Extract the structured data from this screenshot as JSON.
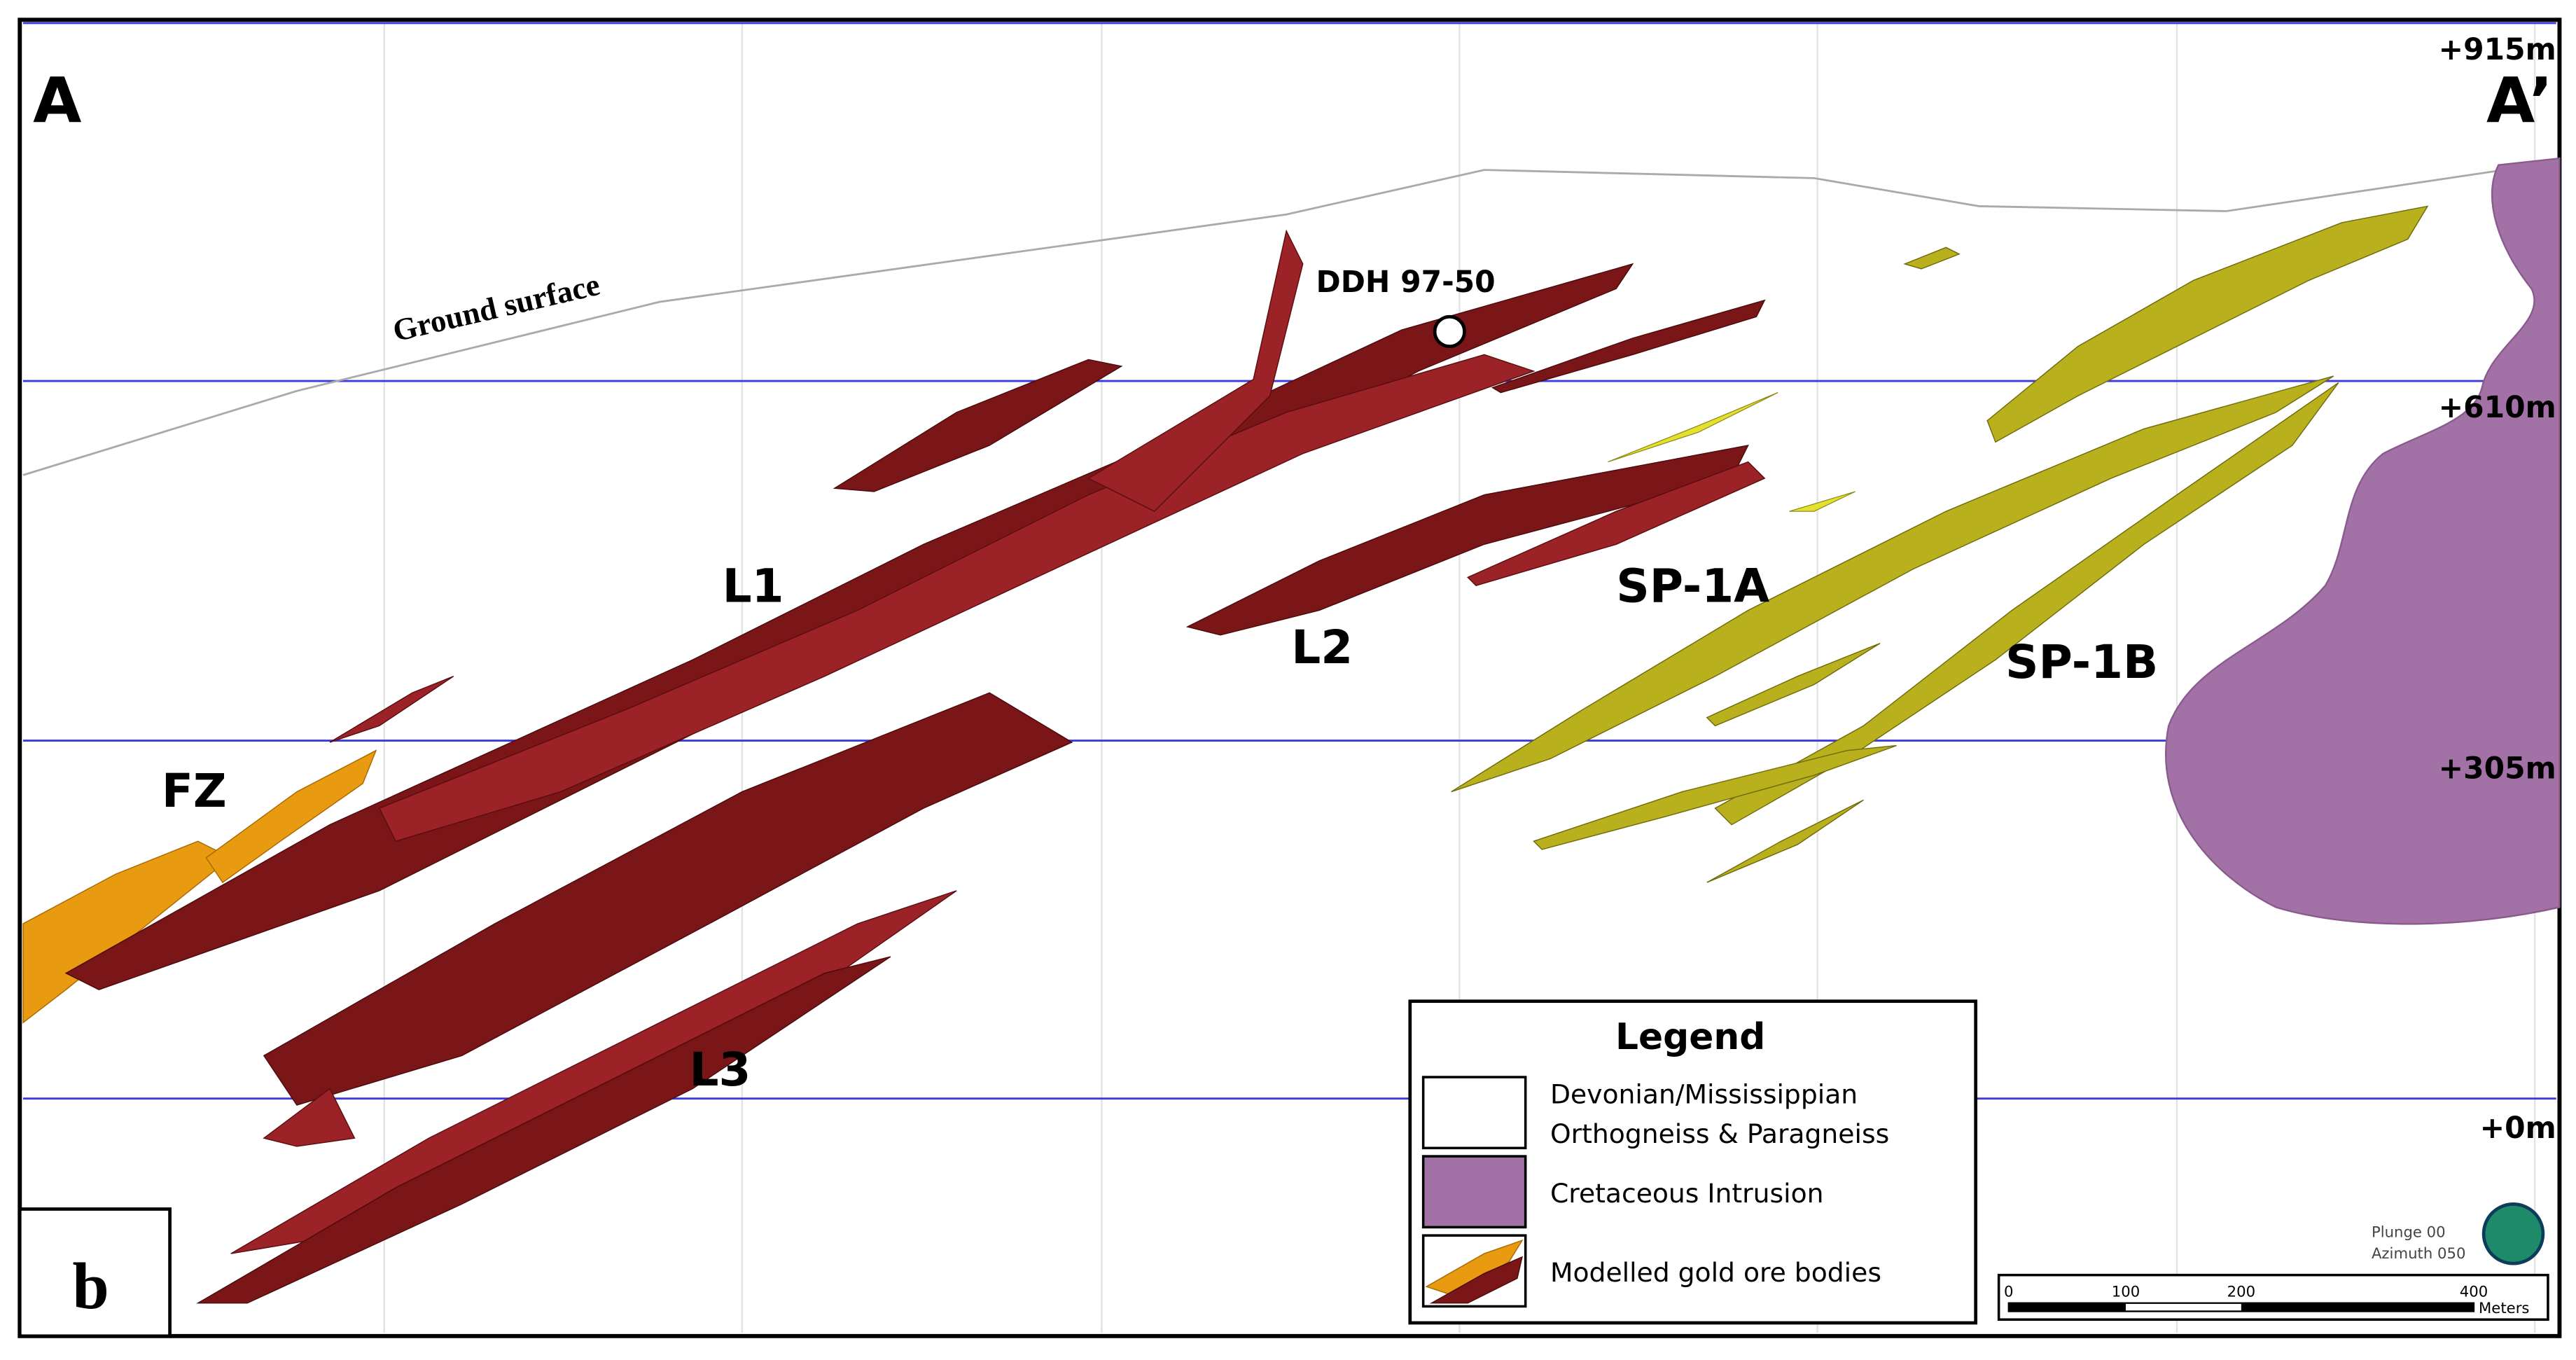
{
  "section": {
    "start_label": "A",
    "end_label": "A’",
    "elevations": [
      "+915m",
      "+610m",
      "+305m",
      "+0m"
    ],
    "ground_surface": "Ground surface",
    "drillhole": "DDH 97-50",
    "zones": [
      "L1",
      "L2",
      "L3",
      "SP-1A",
      "SP-1B",
      "FZ"
    ],
    "panel": "b"
  },
  "legend": {
    "title": "Legend",
    "items": [
      {
        "lines": [
          "Devonian/Mississippian",
          "Orthogneiss & Paragneiss"
        ]
      },
      {
        "lines": [
          "Cretaceous Intrusion"
        ]
      },
      {
        "lines": [
          "Modelled gold ore bodies"
        ]
      }
    ]
  },
  "orientation": {
    "plunge": "Plunge 00",
    "azimuth": "Azimuth 050"
  },
  "scale_bar": {
    "ticks": [
      "0",
      "100",
      "200",
      "400"
    ],
    "unit": "Meters"
  }
}
